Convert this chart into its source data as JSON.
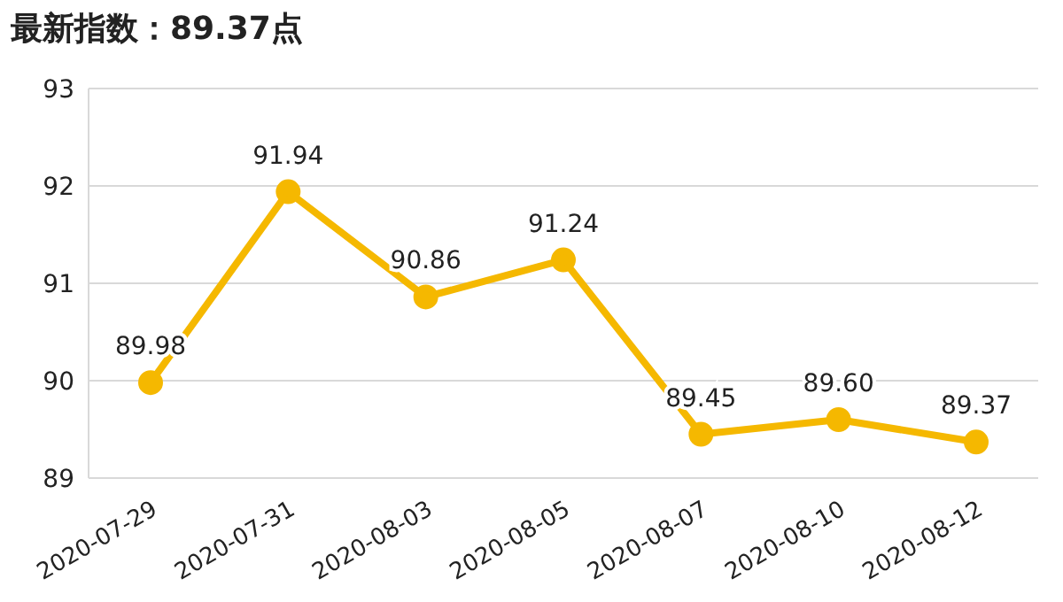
{
  "chart_data": {
    "type": "line",
    "title": "最新指数：89.37点",
    "categories": [
      "2020-07-29",
      "2020-07-31",
      "2020-08-03",
      "2020-08-05",
      "2020-08-07",
      "2020-08-10",
      "2020-08-12"
    ],
    "series": [
      {
        "color": "#f5b800",
        "values": [
          89.98,
          91.94,
          90.86,
          91.24,
          89.45,
          89.6,
          89.37
        ],
        "value_labels": [
          "89.98",
          "91.94",
          "90.86",
          "91.24",
          "89.45",
          "89.60",
          "89.37"
        ]
      }
    ],
    "ylim": [
      89,
      93
    ],
    "yticks": [
      89,
      90,
      91,
      92,
      93
    ],
    "grid": "y",
    "marker": "circle",
    "line_style": "solid"
  }
}
